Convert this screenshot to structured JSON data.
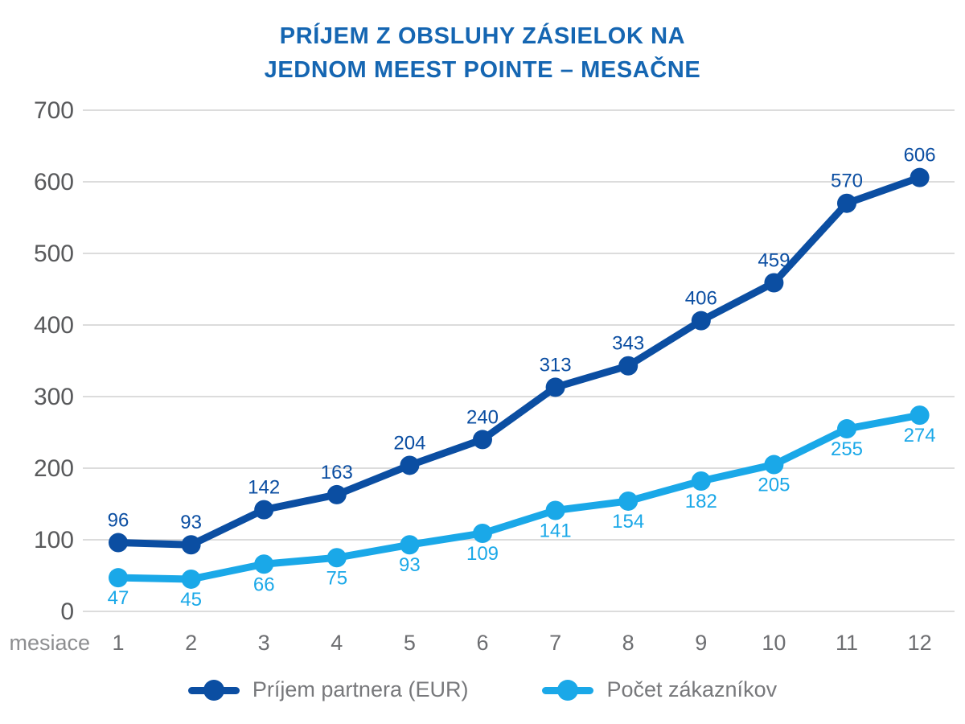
{
  "title": {
    "line1": "PRÍJEM Z OBSLUHY ZÁSIELOK NA",
    "line2": "JEDNOM MEEST POINTE – MESAČNE"
  },
  "chart_data": {
    "type": "line",
    "categories": [
      "1",
      "2",
      "3",
      "4",
      "5",
      "6",
      "7",
      "8",
      "9",
      "10",
      "11",
      "12"
    ],
    "x_axis_label": "mesiace",
    "y_ticks": [
      0,
      100,
      200,
      300,
      400,
      500,
      600,
      700
    ],
    "ylim": [
      0,
      700
    ],
    "grid": true,
    "legend_position": "bottom",
    "series": [
      {
        "name": "Príjem partnera (EUR)",
        "color": "#0B4EA2",
        "values": [
          96,
          93,
          142,
          163,
          204,
          240,
          313,
          343,
          406,
          459,
          570,
          606
        ],
        "label_position": "above"
      },
      {
        "name": "Počet zákazníkov",
        "color": "#1AA8E8",
        "values": [
          47,
          45,
          66,
          75,
          93,
          109,
          141,
          154,
          182,
          205,
          255,
          274
        ],
        "label_position": "below"
      }
    ]
  },
  "colors": {
    "title": "#1566B2",
    "y_tick_text": "#58595B",
    "x_tick_text": "#6D6E71",
    "axis_label_text": "#8D8E90",
    "legend_text": "#77787B",
    "gridline": "#DCDCDC",
    "background": "#FFFFFF"
  }
}
